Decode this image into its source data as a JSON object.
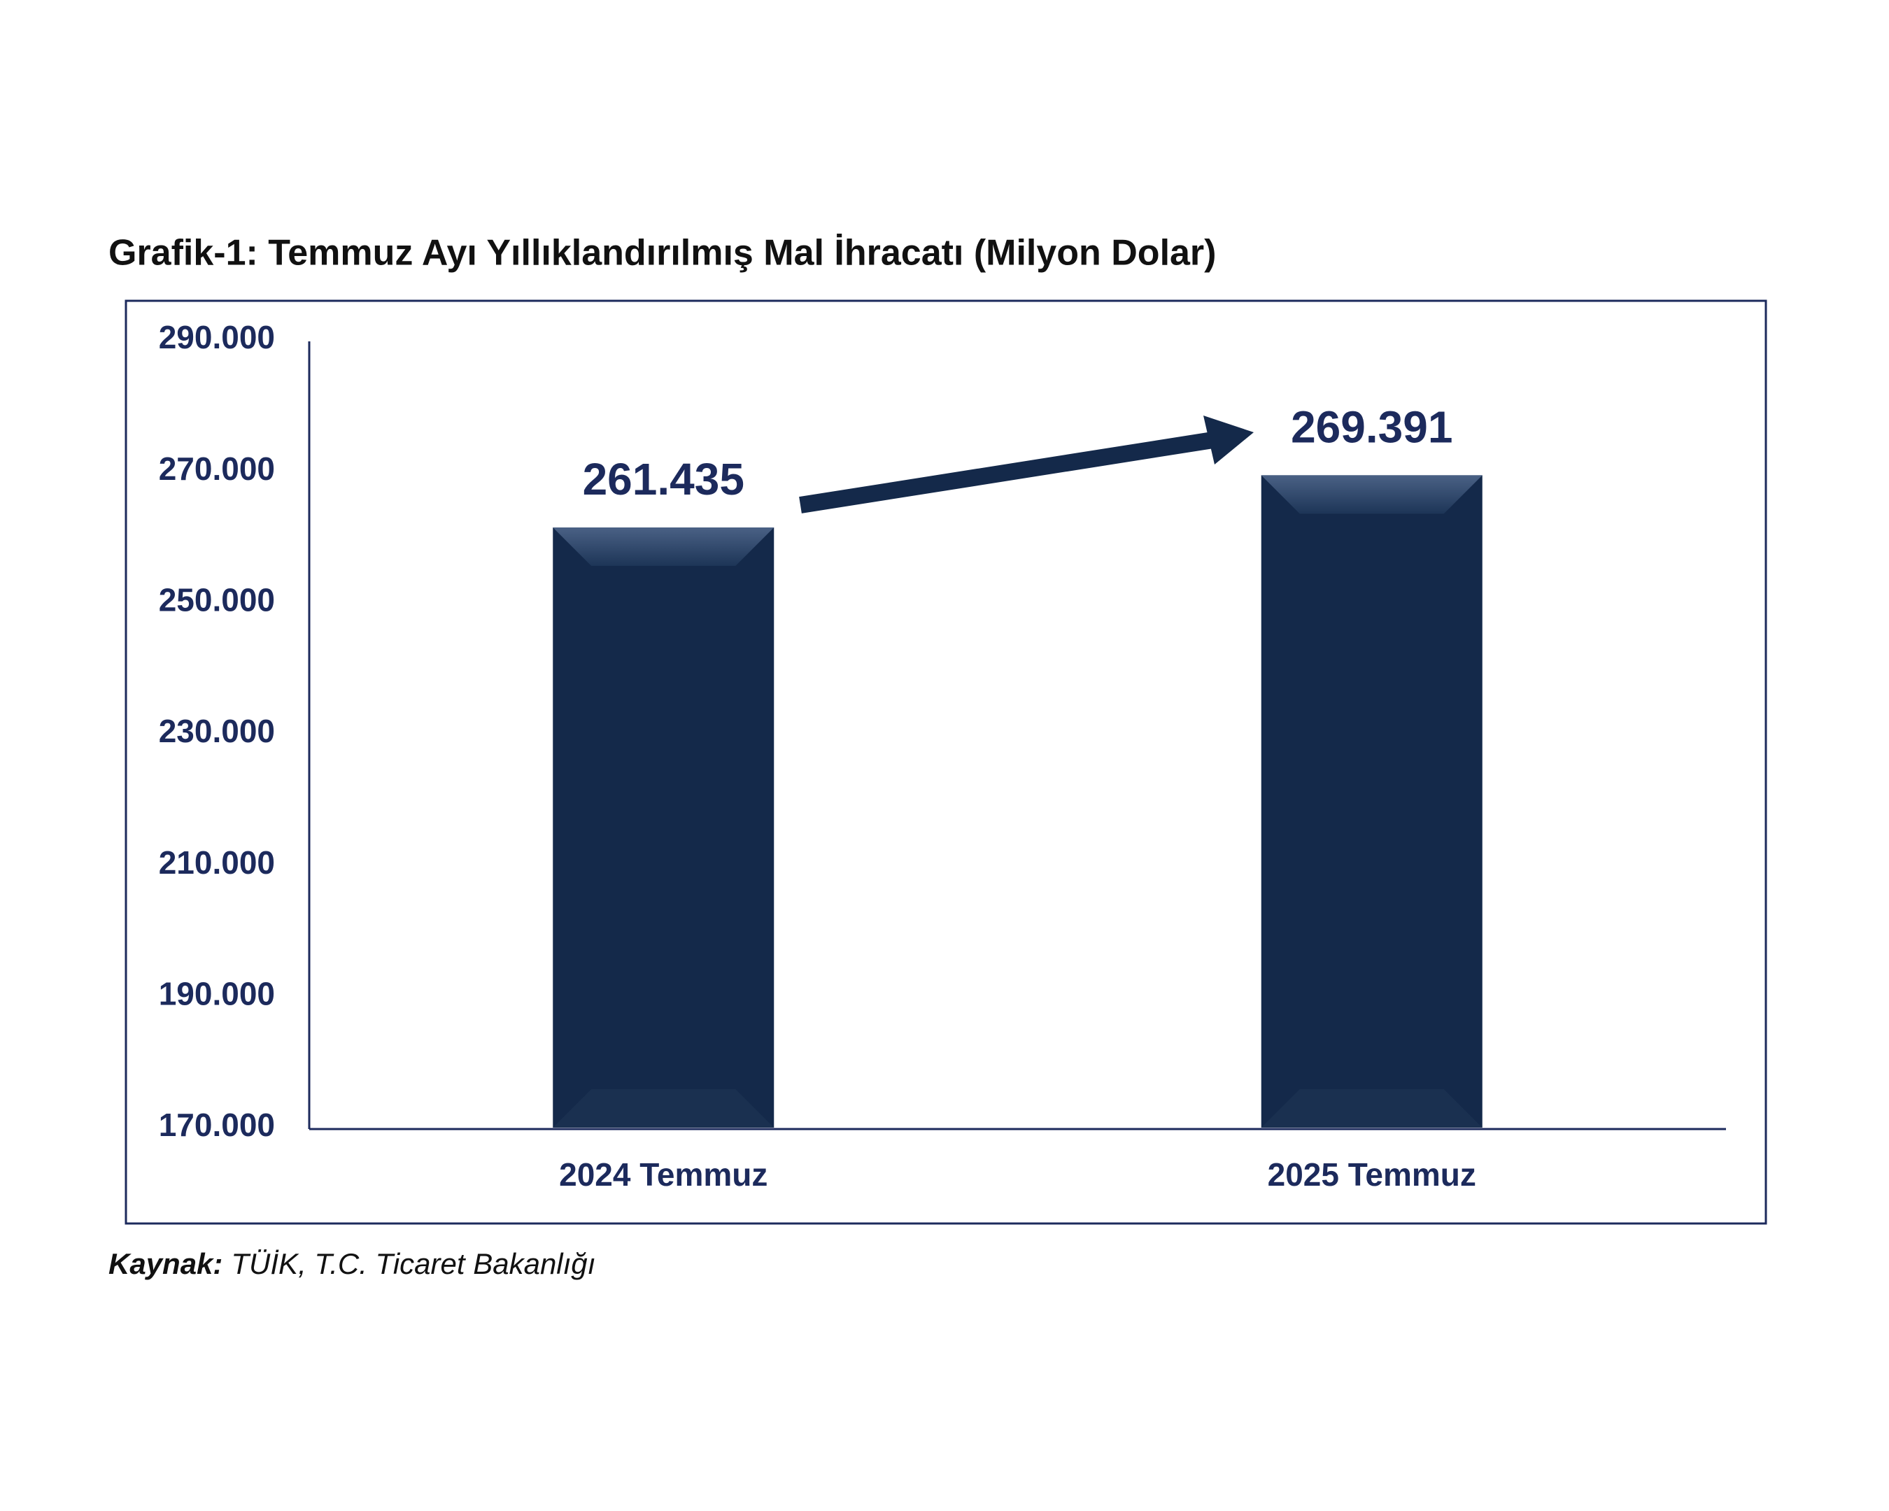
{
  "chart_data": {
    "type": "bar",
    "title": "Grafik-1: Temmuz Ayı Yıllıklandırılmış Mal İhracatı (Milyon Dolar)",
    "categories": [
      "2024 Temmuz",
      "2025 Temmuz"
    ],
    "values": [
      261435,
      269391
    ],
    "value_labels": [
      "261.435",
      "269.391"
    ],
    "color": "#14294a",
    "ylim": [
      170000,
      290000
    ],
    "yticks": [
      {
        "value": 170000,
        "label": "170.000"
      },
      {
        "value": 190000,
        "label": "190.000"
      },
      {
        "value": 210000,
        "label": "210.000"
      },
      {
        "value": 230000,
        "label": "230.000"
      },
      {
        "value": 250000,
        "label": "250.000"
      },
      {
        "value": 270000,
        "label": "270.000"
      },
      {
        "value": 290000,
        "label": "290.000"
      }
    ],
    "grid": false,
    "source_label": "Kaynak:",
    "source_text": "TÜİK, T.C. Ticaret Bakanlığı"
  }
}
